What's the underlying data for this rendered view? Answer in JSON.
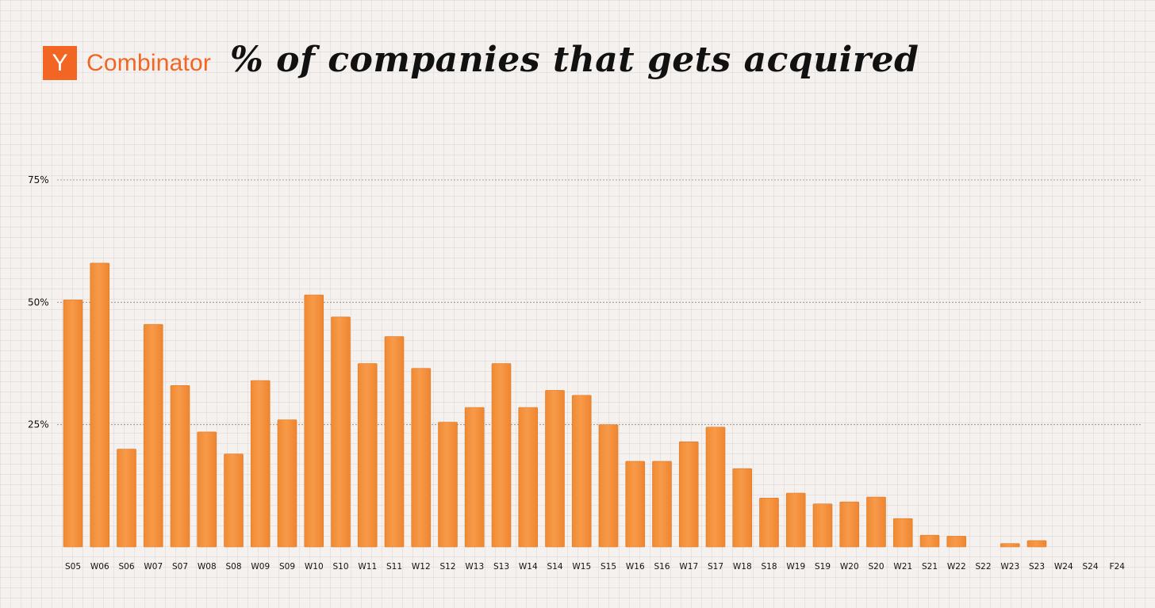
{
  "logo": {
    "mark": "Y",
    "text": "Combinator",
    "color": "#f26522"
  },
  "chart_data": {
    "type": "bar",
    "title": "% of companies that gets acquired",
    "xlabel": "",
    "ylabel": "",
    "ylim": [
      0,
      75
    ],
    "yticks": [
      {
        "value": 75,
        "label": "75%"
      },
      {
        "value": 50,
        "label": "50%"
      },
      {
        "value": 25,
        "label": "25%"
      }
    ],
    "grid": "horizontal dotted",
    "bar_color": "#f5923e",
    "categories": [
      "S05",
      "W06",
      "S06",
      "W07",
      "S07",
      "W08",
      "S08",
      "W09",
      "S09",
      "W10",
      "S10",
      "W11",
      "S11",
      "W12",
      "S12",
      "W13",
      "S13",
      "W14",
      "S14",
      "W15",
      "S15",
      "W16",
      "S16",
      "W17",
      "S17",
      "W18",
      "S18",
      "W19",
      "S19",
      "W20",
      "S20",
      "W21",
      "S21",
      "W22",
      "S22",
      "W23",
      "S23",
      "W24",
      "S24",
      "F24"
    ],
    "values": [
      50.5,
      58,
      20,
      45.5,
      33,
      23.5,
      19,
      34,
      26,
      51.5,
      47,
      37.5,
      43,
      36.5,
      25.5,
      28.5,
      37.5,
      28.5,
      32,
      31,
      25,
      17.5,
      17.5,
      21.5,
      24.5,
      16,
      10,
      11,
      8.8,
      9.2,
      10.2,
      5.8,
      2.4,
      2.2,
      0,
      0.7,
      1.3,
      0,
      0,
      0
    ]
  }
}
